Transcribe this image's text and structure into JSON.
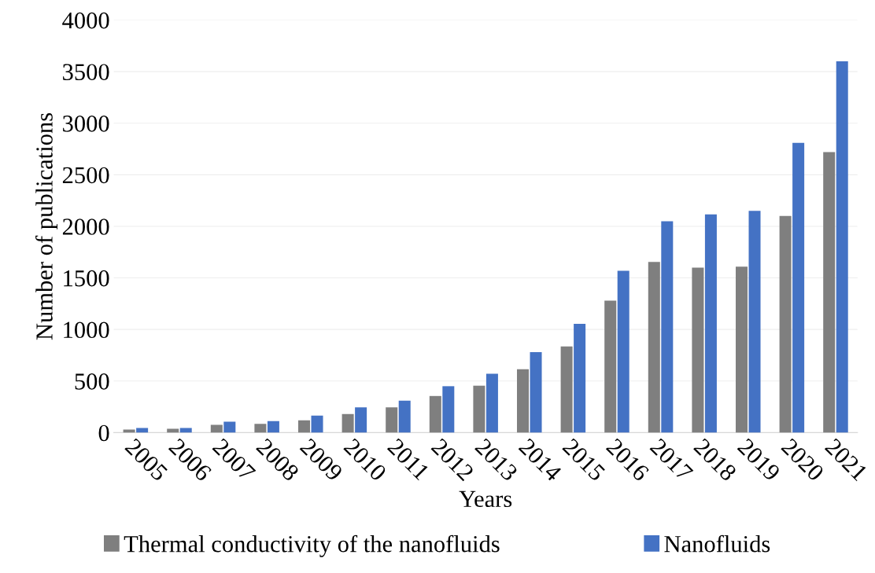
{
  "chart_data": {
    "type": "bar",
    "xlabel": "Years",
    "ylabel": "Number of publications",
    "categories": [
      "2005",
      "2006",
      "2007",
      "2008",
      "2009",
      "2010",
      "2011",
      "2012",
      "2013",
      "2014",
      "2015",
      "2016",
      "2017",
      "2018",
      "2019",
      "2020",
      "2021"
    ],
    "series": [
      {
        "name": "Thermal conductivity of the nanofluids",
        "color": "#7f7f7f",
        "values": [
          30,
          38,
          75,
          85,
          120,
          180,
          245,
          355,
          455,
          615,
          835,
          1280,
          1655,
          1600,
          1610,
          2100,
          2720
        ]
      },
      {
        "name": "Nanofluids",
        "color": "#4472c4",
        "values": [
          45,
          45,
          105,
          112,
          165,
          245,
          310,
          450,
          570,
          780,
          1055,
          1570,
          2050,
          2115,
          2150,
          2810,
          3600
        ]
      }
    ],
    "ylim": [
      0,
      4000
    ],
    "yticks": [
      0,
      500,
      1000,
      1500,
      2000,
      2500,
      3000,
      3500,
      4000
    ],
    "grid": "y",
    "legend": "bottom"
  }
}
